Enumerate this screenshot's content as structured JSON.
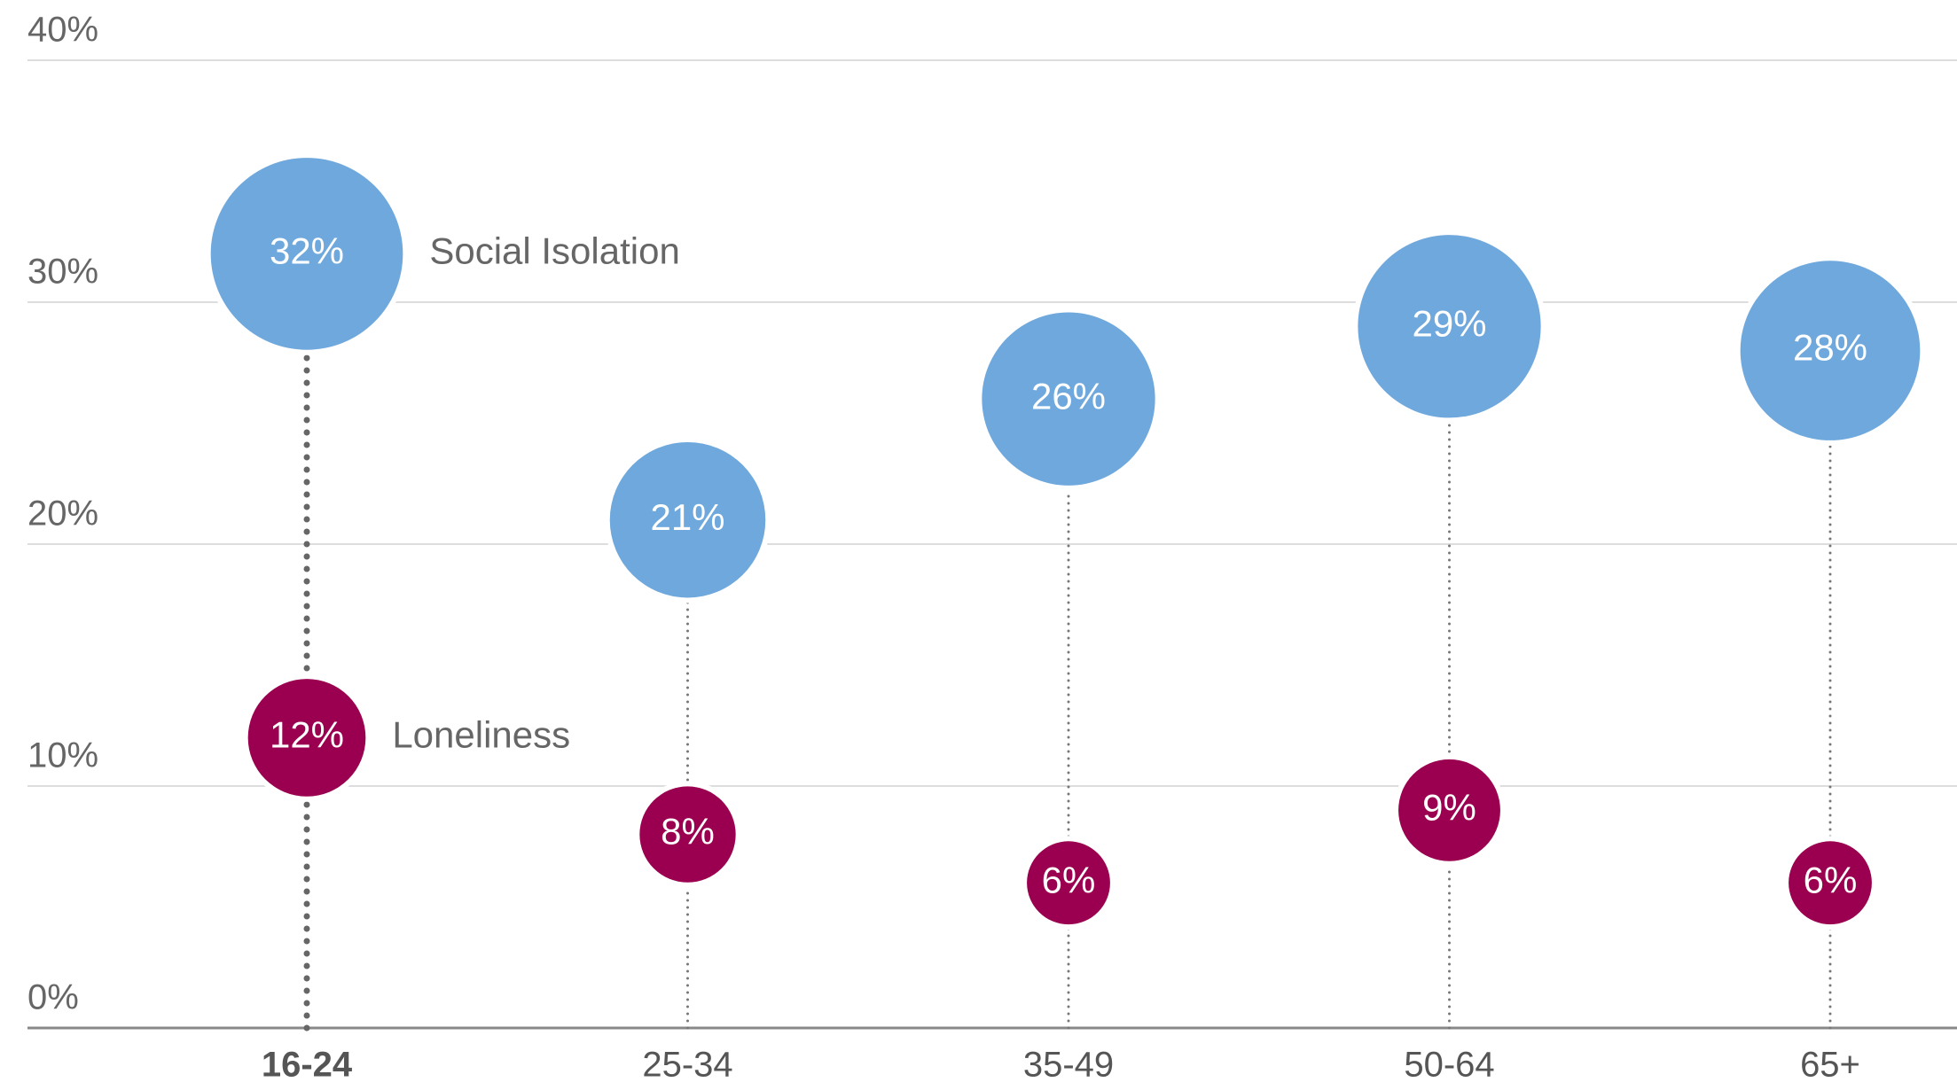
{
  "chart_data": {
    "type": "dot",
    "categories": [
      "16-24",
      "25-34",
      "35-49",
      "50-64",
      "65+"
    ],
    "highlight": "16-24",
    "series": [
      {
        "name": "Social Isolation",
        "color": "#6fa8dc",
        "values": [
          32,
          21,
          26,
          29,
          28
        ],
        "value_labels": [
          "32%",
          "21%",
          "26%",
          "29%",
          "28%"
        ]
      },
      {
        "name": "Loneliness",
        "color": "#9b0050",
        "values": [
          12,
          8,
          6,
          9,
          6
        ],
        "value_labels": [
          "12%",
          "8%",
          "6%",
          "9%",
          "6%"
        ]
      }
    ],
    "ylim": [
      0,
      40
    ],
    "yticks": [
      {
        "value": 0,
        "label": "0%"
      },
      {
        "value": 10,
        "label": "10%"
      },
      {
        "value": 20,
        "label": "20%"
      },
      {
        "value": 30,
        "label": "30%"
      },
      {
        "value": 40,
        "label": "40%"
      }
    ],
    "grid": true
  }
}
